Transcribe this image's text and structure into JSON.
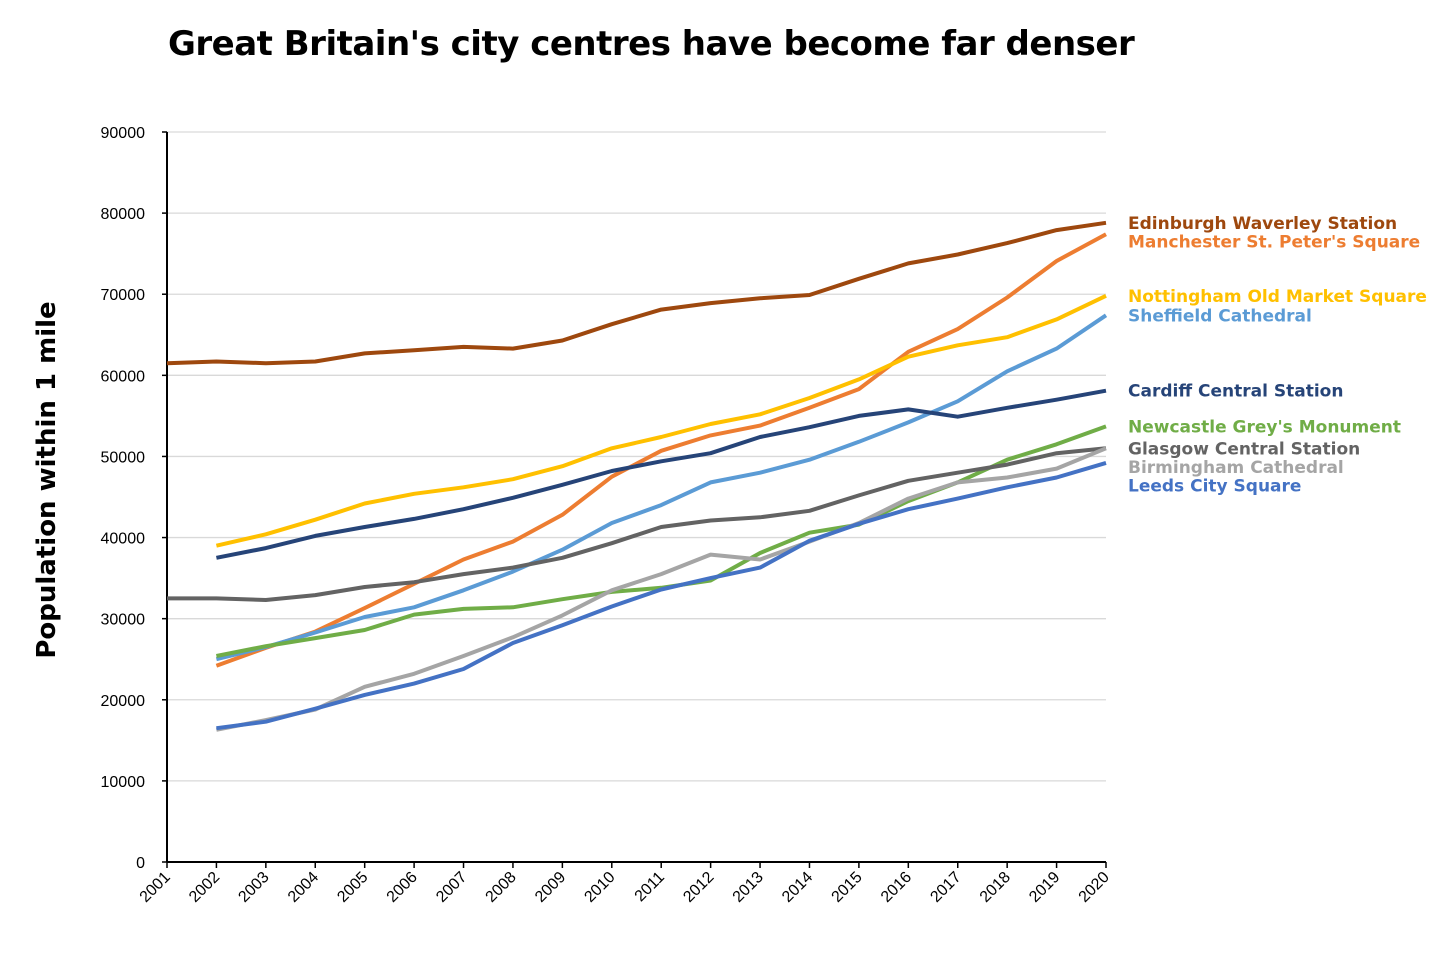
{
  "chart_data": {
    "type": "line",
    "title": "Great Britain's city centres have become far denser",
    "xlabel": "",
    "ylabel": "Population within 1 mile",
    "ylim": [
      0,
      90000
    ],
    "yticks": [
      "0",
      "10000",
      "20000",
      "30000",
      "40000",
      "50000",
      "60000",
      "70000",
      "80000",
      "90000"
    ],
    "x": [
      "2001",
      "2002",
      "2003",
      "2004",
      "2005",
      "2006",
      "2007",
      "2008",
      "2009",
      "2010",
      "2011",
      "2012",
      "2013",
      "2014",
      "2015",
      "2016",
      "2017",
      "2018",
      "2019",
      "2020"
    ],
    "grid": true,
    "legend": "right",
    "series": [
      {
        "name": "Edinburgh Waverley Station",
        "color": "#9e480e",
        "values": [
          61500,
          61700,
          61500,
          61700,
          62700,
          63100,
          63500,
          63300,
          64300,
          66300,
          68100,
          68900,
          69500,
          69900,
          71900,
          73800,
          74900,
          76300,
          77900,
          78800
        ]
      },
      {
        "name": "Manchester St. Peter's Square",
        "color": "#ed7d31",
        "values": [
          null,
          24200,
          26400,
          28400,
          31300,
          34300,
          37300,
          39500,
          42800,
          47500,
          50700,
          52600,
          53800,
          56000,
          58300,
          62900,
          65700,
          69600,
          74100,
          77400
        ]
      },
      {
        "name": "Nottingham Old Market Square",
        "color": "#ffc000",
        "values": [
          null,
          39000,
          40400,
          42200,
          44200,
          45400,
          46200,
          47200,
          48800,
          51000,
          52400,
          54000,
          55200,
          57200,
          59500,
          62300,
          63700,
          64700,
          66900,
          69800
        ]
      },
      {
        "name": "Sheffield Cathedral",
        "color": "#5b9bd5",
        "values": [
          null,
          25000,
          26500,
          28300,
          30200,
          31400,
          33500,
          35800,
          38500,
          41800,
          44000,
          46800,
          48000,
          49600,
          51800,
          54200,
          56800,
          60500,
          63300,
          67400
        ]
      },
      {
        "name": "Cardiff Central Station",
        "color": "#264478",
        "values": [
          null,
          37500,
          38700,
          40200,
          41300,
          42300,
          43500,
          44900,
          46500,
          48200,
          49400,
          50400,
          52400,
          53600,
          55000,
          55800,
          54900,
          56000,
          57000,
          58100
        ]
      },
      {
        "name": "Newcastle Grey's Monument",
        "color": "#70ad47",
        "values": [
          null,
          25400,
          26600,
          27600,
          28600,
          30500,
          31200,
          31400,
          32400,
          33300,
          33800,
          34700,
          38100,
          40600,
          41600,
          44500,
          46800,
          49600,
          51500,
          53700
        ]
      },
      {
        "name": "Glasgow Central Station",
        "color": "#636363",
        "values": [
          32500,
          32500,
          32300,
          32900,
          33900,
          34500,
          35500,
          36300,
          37500,
          39300,
          41300,
          42100,
          42500,
          43300,
          45200,
          47000,
          48000,
          49000,
          50400,
          51000
        ]
      },
      {
        "name": "Birmingham Cathedral",
        "color": "#a5a5a5",
        "values": [
          null,
          16300,
          17500,
          18800,
          21600,
          23200,
          25400,
          27700,
          30400,
          33500,
          35500,
          37900,
          37300,
          39500,
          41800,
          44800,
          46800,
          47400,
          48500,
          51000
        ]
      },
      {
        "name": "Leeds City Square",
        "color": "#4472c4",
        "values": [
          null,
          16500,
          17300,
          18900,
          20600,
          22000,
          23800,
          27000,
          29200,
          31500,
          33600,
          35000,
          36300,
          39600,
          41700,
          43500,
          44800,
          46200,
          47400,
          49200
        ]
      }
    ]
  }
}
